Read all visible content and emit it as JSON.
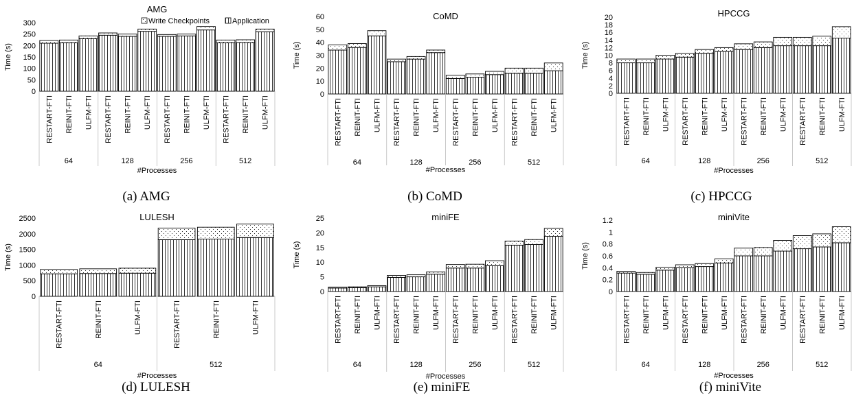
{
  "legend": {
    "write_checkpoints": "Write Checkpoints",
    "application": "Application"
  },
  "chart_data": [
    {
      "type": "bar",
      "stacked": true,
      "title": "AMG",
      "caption": "(a) AMG",
      "ylabel": "Time (s)",
      "xlabel": "#Processes",
      "ylim": [
        0,
        300
      ],
      "yticks": [
        0,
        50,
        100,
        150,
        200,
        250,
        300
      ],
      "ytick_labels": [
        "0",
        "50",
        "100",
        "150",
        "200",
        "250",
        "300"
      ],
      "legend": "top-right",
      "groups": [
        "64",
        "128",
        "256",
        "512"
      ],
      "categories": [
        "RESTART-FTI",
        "REINIT-FTI",
        "ULFM-FTI"
      ],
      "series": [
        {
          "name": "Application",
          "values": [
            [
              210,
              212,
              230
            ],
            [
              245,
              240,
              262
            ],
            [
              240,
              242,
              268
            ],
            [
              212,
              213,
              260
            ]
          ]
        },
        {
          "name": "Write Checkpoints",
          "values": [
            [
              12,
              12,
              12
            ],
            [
              10,
              10,
              10
            ],
            [
              8,
              8,
              15
            ],
            [
              12,
              12,
              12
            ]
          ]
        }
      ]
    },
    {
      "type": "bar",
      "stacked": true,
      "title": "CoMD",
      "caption": "(b) CoMD",
      "ylabel": "Time (s)",
      "xlabel": "#Processes",
      "ylim": [
        0,
        60
      ],
      "yticks": [
        0,
        10,
        20,
        30,
        40,
        50,
        60
      ],
      "ytick_labels": [
        "0",
        "10",
        "20",
        "30",
        "40",
        "50",
        "60"
      ],
      "groups": [
        "64",
        "128",
        "256",
        "512"
      ],
      "categories": [
        "RESTART-FTI",
        "REINIT-FTI",
        "ULFM-FTI"
      ],
      "series": [
        {
          "name": "Application",
          "values": [
            [
              34,
              36,
              45
            ],
            [
              25,
              27,
              32
            ],
            [
              12,
              13,
              15
            ],
            [
              16,
              16,
              18
            ]
          ]
        },
        {
          "name": "Write Checkpoints",
          "values": [
            [
              4,
              3,
              4
            ],
            [
              2,
              2,
              2
            ],
            [
              2.5,
              2.5,
              2.5
            ],
            [
              4,
              4,
              6
            ]
          ]
        }
      ]
    },
    {
      "type": "bar",
      "stacked": true,
      "title": "HPCCG",
      "caption": "(c) HPCCG",
      "ylabel": "Time (s)",
      "xlabel": "#Processes",
      "ylim": [
        0,
        20
      ],
      "yticks": [
        0,
        2,
        4,
        6,
        8,
        10,
        12,
        14,
        16,
        18,
        20
      ],
      "ytick_labels": [
        "0",
        "2",
        "4",
        "6",
        "8",
        "10",
        "12",
        "14",
        "16",
        "18",
        "20"
      ],
      "groups": [
        "64",
        "128",
        "256",
        "512"
      ],
      "categories": [
        "RESTART-FTI",
        "REINIT-FTI",
        "ULFM-FTI"
      ],
      "series": [
        {
          "name": "Application",
          "values": [
            [
              8,
              8,
              9
            ],
            [
              9.5,
              10.5,
              11
            ],
            [
              11.5,
              12,
              12.5
            ],
            [
              12.5,
              12.5,
              14.5
            ]
          ]
        },
        {
          "name": "Write Checkpoints",
          "values": [
            [
              1,
              1,
              1
            ],
            [
              1,
              1,
              1
            ],
            [
              1.5,
              1.5,
              2.2
            ],
            [
              2.2,
              2.5,
              3
            ]
          ]
        }
      ]
    },
    {
      "type": "bar",
      "stacked": true,
      "title": "LULESH",
      "caption": "(d) LULESH",
      "ylabel": "Time (s)",
      "xlabel": "#Processes",
      "ylim": [
        0,
        2500
      ],
      "yticks": [
        0,
        500,
        1000,
        1500,
        2000,
        2500
      ],
      "ytick_labels": [
        "0",
        "500",
        "1000",
        "1500",
        "2000",
        "2500"
      ],
      "groups": [
        "64",
        "512"
      ],
      "categories": [
        "RESTART-FTI",
        "REINIT-FTI",
        "ULFM-FTI"
      ],
      "series": [
        {
          "name": "Application",
          "values": [
            [
              720,
              730,
              740
            ],
            [
              1810,
              1830,
              1880
            ]
          ]
        },
        {
          "name": "Write Checkpoints",
          "values": [
            [
              140,
              150,
              160
            ],
            [
              370,
              380,
              430
            ]
          ]
        }
      ]
    },
    {
      "type": "bar",
      "stacked": true,
      "title": "miniFE",
      "caption": "(e) miniFE",
      "ylabel": "Time (s)",
      "xlabel": "#Processes",
      "ylim": [
        0,
        25
      ],
      "yticks": [
        0,
        5,
        10,
        15,
        20,
        25
      ],
      "ytick_labels": [
        "0",
        "5",
        "10",
        "15",
        "20",
        "25"
      ],
      "groups": [
        "64",
        "128",
        "256",
        "512"
      ],
      "categories": [
        "RESTART-FTI",
        "REINIT-FTI",
        "ULFM-FTI"
      ],
      "series": [
        {
          "name": "Application",
          "values": [
            [
              1.2,
              1.3,
              1.6
            ],
            [
              4.8,
              5,
              5.9
            ],
            [
              8,
              8,
              8.8
            ],
            [
              15.8,
              16,
              18.8
            ]
          ]
        },
        {
          "name": "Write Checkpoints",
          "values": [
            [
              0.3,
              0.3,
              0.4
            ],
            [
              0.7,
              0.7,
              0.8
            ],
            [
              1.2,
              1.3,
              1.7
            ],
            [
              1.4,
              1.7,
              2.7
            ]
          ]
        }
      ]
    },
    {
      "type": "bar",
      "stacked": true,
      "title": "miniVite",
      "caption": "(f) miniVite",
      "ylabel": "Time (s)",
      "xlabel": "#Processes",
      "ylim": [
        0,
        1.2
      ],
      "yticks": [
        0,
        0.2,
        0.4,
        0.6,
        0.8,
        1,
        1.2
      ],
      "ytick_labels": [
        "0",
        "0.2",
        "0.4",
        "0.6",
        "0.8",
        "1",
        "1.2"
      ],
      "groups": [
        "64",
        "128",
        "256",
        "512"
      ],
      "categories": [
        "RESTART-FTI",
        "REINIT-FTI",
        "ULFM-FTI"
      ],
      "series": [
        {
          "name": "Application",
          "values": [
            [
              0.31,
              0.29,
              0.36
            ],
            [
              0.4,
              0.42,
              0.48
            ],
            [
              0.6,
              0.6,
              0.68
            ],
            [
              0.72,
              0.75,
              0.82
            ]
          ]
        },
        {
          "name": "Write Checkpoints",
          "values": [
            [
              0.03,
              0.03,
              0.05
            ],
            [
              0.05,
              0.05,
              0.07
            ],
            [
              0.13,
              0.14,
              0.18
            ],
            [
              0.22,
              0.22,
              0.27
            ]
          ]
        }
      ]
    }
  ]
}
